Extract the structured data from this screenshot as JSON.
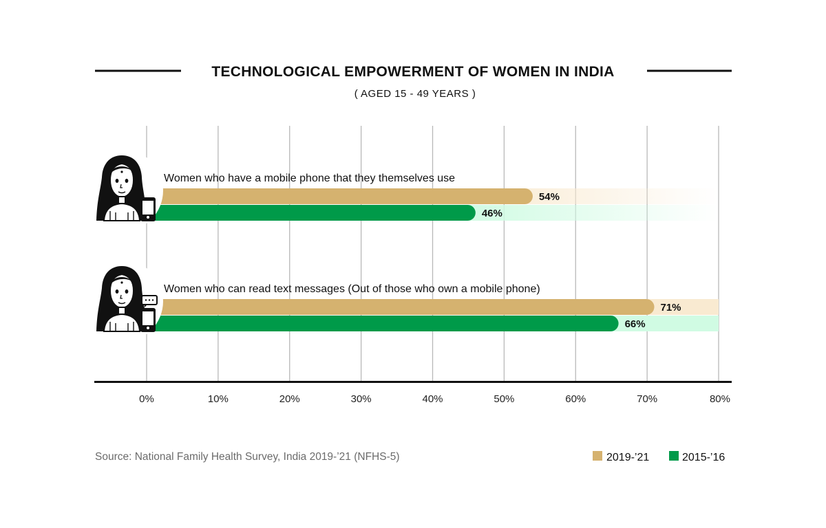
{
  "chart_data": {
    "type": "bar",
    "orientation": "horizontal",
    "title": "TECHNOLOGICAL EMPOWERMENT OF WOMEN IN INDIA",
    "subtitle": "( AGED 15 - 49 YEARS )",
    "xlabel": "",
    "ylabel": "",
    "xlim": [
      0,
      80
    ],
    "x_ticks": [
      0,
      10,
      20,
      30,
      40,
      50,
      60,
      70,
      80
    ],
    "x_tick_labels": [
      "0%",
      "10%",
      "20%",
      "30%",
      "40%",
      "50%",
      "60%",
      "70%",
      "80%"
    ],
    "grid": true,
    "legend_position": "bottom-right",
    "categories": [
      "Women who have a mobile phone that they themselves use",
      "Women who can read text messages (Out of those who own a mobile phone)"
    ],
    "category_icons": [
      "woman-with-phone-icon",
      "woman-with-phone-message-icon"
    ],
    "series": [
      {
        "name": "2019-’21",
        "values": [
          54,
          71
        ],
        "value_labels": [
          "54%",
          "71%"
        ],
        "color": "#d5b26f",
        "track_color": "#f9ead1"
      },
      {
        "name": "2015-’16",
        "values": [
          46,
          66
        ],
        "value_labels": [
          "46%",
          "66%"
        ],
        "color": "#009a49",
        "track_color": "#d0fbe3"
      }
    ],
    "source": "Source: National Family Health Survey, India 2019-’21 (NFHS-5)"
  }
}
